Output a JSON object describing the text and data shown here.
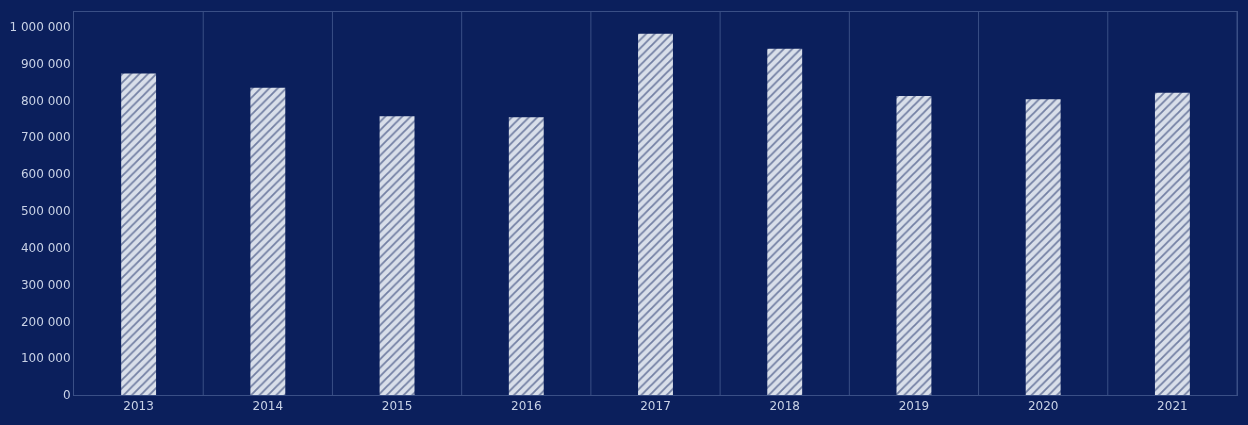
{
  "chart_data": {
    "type": "bar",
    "categories": [
      "2013",
      "2014",
      "2015",
      "2016",
      "2017",
      "2018",
      "2019",
      "2020",
      "2021"
    ],
    "values": [
      873000,
      834000,
      757000,
      754000,
      981000,
      940000,
      812000,
      803000,
      821000
    ],
    "color": "#d9dfea",
    "ylim": [
      0,
      1040000
    ],
    "yticks": [
      0,
      {
        "value": 100000,
        "label": "100 000"
      },
      {
        "value": 200000,
        "label": "200 000"
      },
      {
        "value": 300000,
        "label": "300 000"
      },
      {
        "value": 400000,
        "label": "400 000"
      },
      {
        "value": 500000,
        "label": "500 000"
      },
      {
        "value": 600000,
        "label": "600 000"
      },
      {
        "value": 700000,
        "label": "700 000"
      },
      {
        "value": 800000,
        "label": "800 000"
      },
      {
        "value": 900000,
        "label": "900 000"
      },
      {
        "value": 1000000,
        "label": "1 000 000"
      }
    ],
    "grid": "x"
  }
}
